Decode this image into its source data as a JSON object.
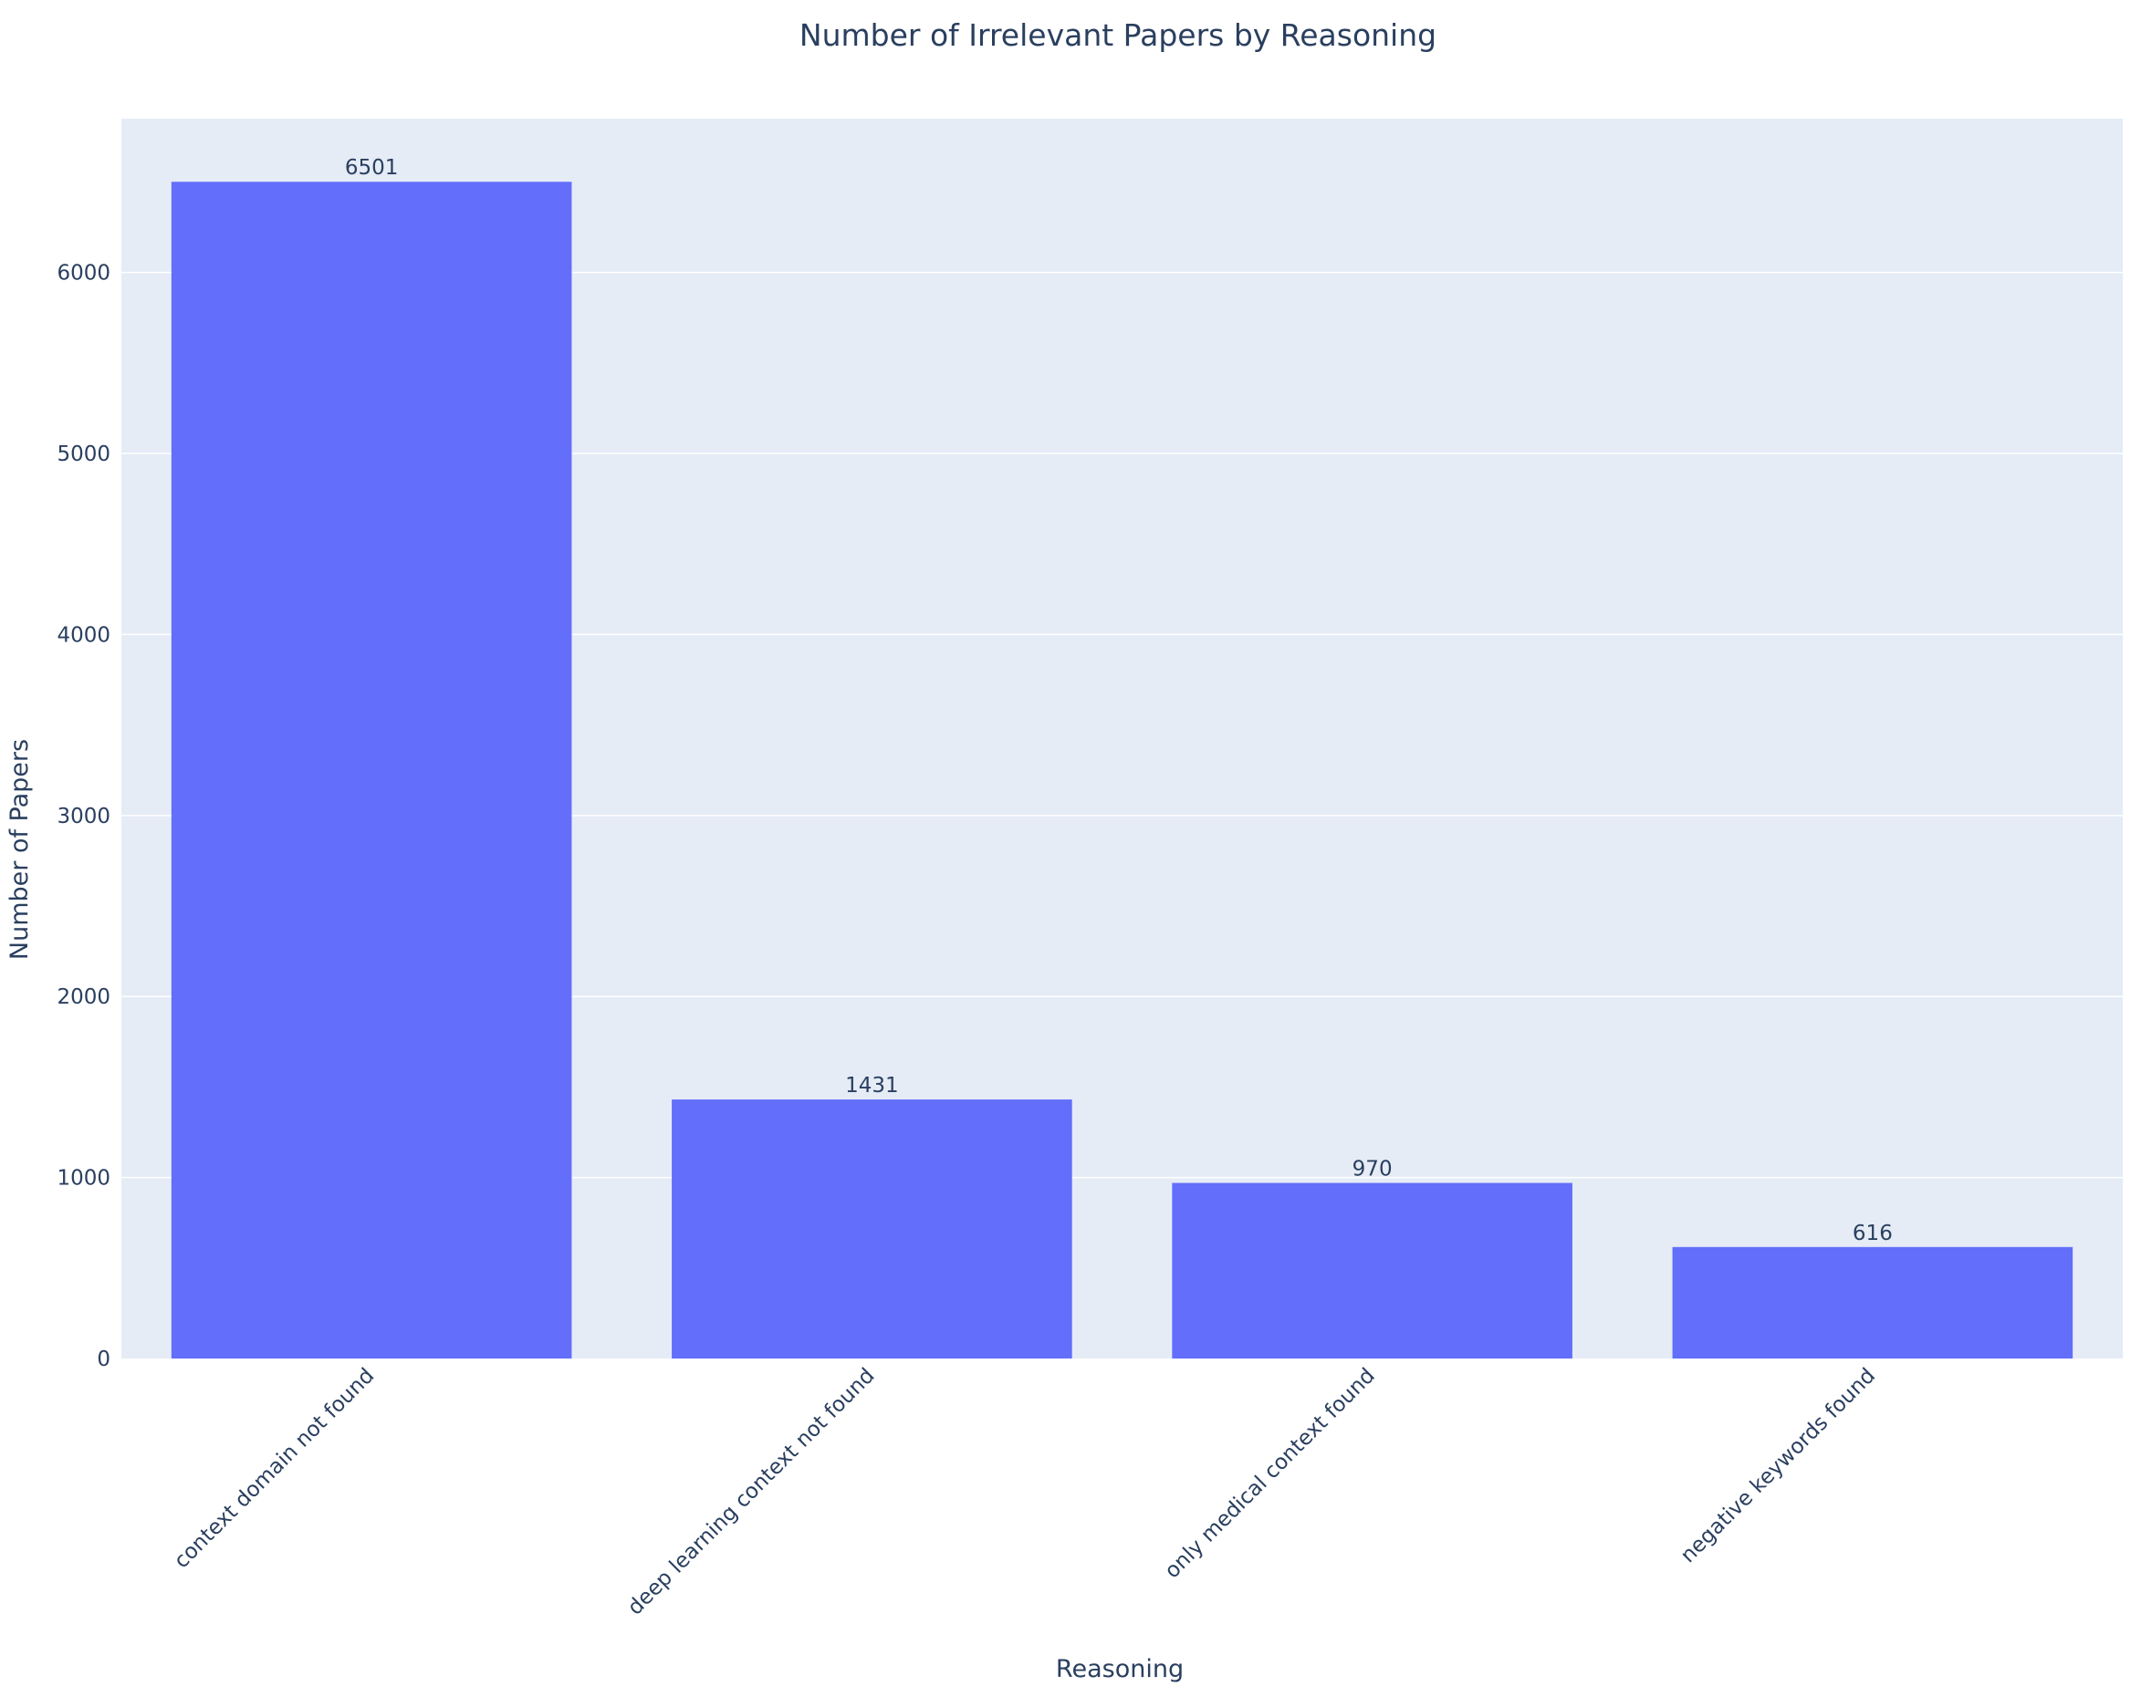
{
  "chart_data": {
    "type": "bar",
    "title": "Number of Irrelevant Papers by Reasoning",
    "xlabel": "Reasoning",
    "ylabel": "Number of Papers",
    "categories": [
      "context domain not found",
      "deep learning context not found",
      "only medical context found",
      "negative keywords found"
    ],
    "values": [
      6501,
      1431,
      970,
      616
    ],
    "data_labels": [
      "6501",
      "1431",
      "970",
      "616"
    ],
    "ylim": [
      0,
      6850
    ],
    "yticks": [
      0,
      1000,
      2000,
      3000,
      4000,
      5000,
      6000
    ],
    "ytick_labels": [
      "0",
      "1000",
      "2000",
      "3000",
      "4000",
      "5000",
      "6000"
    ],
    "grid": true,
    "legend": "none",
    "colors": {
      "bar": "#636efa",
      "plot_background": "#e5ecf6",
      "gridline": "#ffffff",
      "text": "#2a3f5f"
    }
  }
}
